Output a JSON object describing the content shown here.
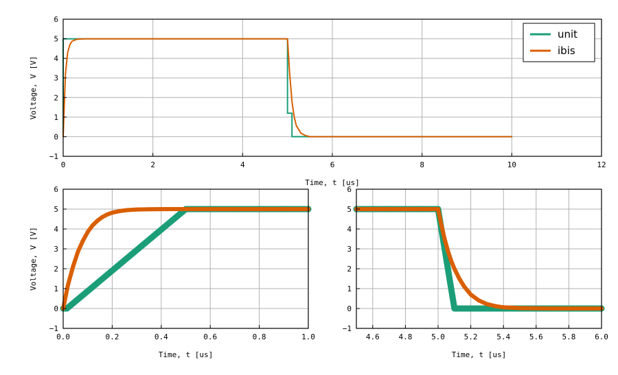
{
  "colors": {
    "unit": "#1b9e77",
    "ibis": "#d95f02",
    "grid": "#b0b0b0"
  },
  "chart_data": [
    {
      "type": "line",
      "xlabel": "Time, t [us]",
      "ylabel": "Voltage, V [V]",
      "xlim": [
        0,
        12
      ],
      "ylim": [
        -1,
        6
      ],
      "xticks": [
        0,
        2,
        4,
        6,
        8,
        10,
        12
      ],
      "xtick_labels": [
        "0",
        "2",
        "4",
        "6",
        "8",
        "10",
        "12"
      ],
      "yticks": [
        -1,
        0,
        1,
        2,
        3,
        4,
        5,
        6
      ],
      "ytick_labels": [
        "−1",
        "0",
        "1",
        "2",
        "3",
        "4",
        "5",
        "6"
      ],
      "grid": true,
      "legend": "top-right",
      "series": [
        {
          "name": "unit",
          "x": [
            0,
            0.0001,
            0.6,
            5.0,
            5.0001,
            5.1,
            5.1001,
            10
          ],
          "y": [
            0,
            5,
            5,
            5,
            1.2,
            1.2,
            0,
            0
          ]
        },
        {
          "name": "ibis",
          "x": [
            0,
            0.05,
            0.1,
            0.15,
            0.2,
            0.3,
            0.4,
            0.5,
            0.7,
            5.0,
            5.05,
            5.1,
            5.15,
            5.2,
            5.3,
            5.4,
            5.5,
            10
          ],
          "y": [
            0,
            3.2,
            4.3,
            4.7,
            4.88,
            4.97,
            4.99,
            5.0,
            5.0,
            5.0,
            3.2,
            1.8,
            1.0,
            0.55,
            0.18,
            0.06,
            0.0,
            0.0
          ]
        }
      ]
    },
    {
      "type": "scatter",
      "xlabel": "Time, t [us]",
      "ylabel": "Voltage, V [V]",
      "xlim": [
        0.0,
        1.0
      ],
      "ylim": [
        -1,
        6
      ],
      "xticks": [
        0.0,
        0.2,
        0.4,
        0.6,
        0.8,
        1.0
      ],
      "xtick_labels": [
        "0.0",
        "0.2",
        "0.4",
        "0.6",
        "0.8",
        "1.0"
      ],
      "yticks": [
        -1,
        0,
        1,
        2,
        3,
        4,
        5,
        6
      ],
      "ytick_labels": [
        "−1",
        "0",
        "1",
        "2",
        "3",
        "4",
        "5",
        "6"
      ],
      "grid": true,
      "series": [
        {
          "name": "unit",
          "x": [
            0.0,
            0.01,
            0.015,
            0.5,
            0.6,
            0.7,
            0.8,
            0.9,
            1.0
          ],
          "y": [
            0,
            0,
            0,
            5.0,
            5.0,
            5.0,
            5.0,
            5.0,
            5.0
          ]
        },
        {
          "name": "ibis",
          "x": [
            0.0,
            0.02,
            0.04,
            0.06,
            0.08,
            0.1,
            0.12,
            0.14,
            0.16,
            0.18,
            0.2,
            0.23,
            0.26,
            0.3,
            0.35,
            0.42,
            0.5,
            0.6,
            0.7,
            0.8,
            0.9,
            1.0
          ],
          "y": [
            0,
            1.2,
            2.1,
            2.85,
            3.4,
            3.85,
            4.18,
            4.42,
            4.6,
            4.73,
            4.82,
            4.9,
            4.95,
            4.98,
            4.99,
            5.0,
            5.0,
            5.0,
            5.0,
            5.0,
            5.0,
            5.0
          ]
        }
      ]
    },
    {
      "type": "scatter",
      "xlabel": "Time, t [us]",
      "xlim": [
        4.5,
        6.0
      ],
      "ylim": [
        -1,
        6
      ],
      "xticks": [
        4.6,
        4.8,
        5.0,
        5.2,
        5.4,
        5.6,
        5.8,
        6.0
      ],
      "xtick_labels": [
        "4.6",
        "4.8",
        "5.0",
        "5.2",
        "5.4",
        "5.6",
        "5.8",
        "6.0"
      ],
      "yticks": [
        -1,
        0,
        1,
        2,
        3,
        4,
        5,
        6
      ],
      "ytick_labels": [
        "−1",
        "0",
        "1",
        "2",
        "3",
        "4",
        "5",
        "6"
      ],
      "grid": true,
      "series": [
        {
          "name": "unit",
          "x": [
            4.5,
            4.7,
            4.9,
            5.0,
            5.1,
            5.3,
            5.5,
            5.7,
            5.9,
            6.0
          ],
          "y": [
            5,
            5,
            5,
            5,
            0,
            0,
            0,
            0,
            0,
            0
          ]
        },
        {
          "name": "ibis",
          "x": [
            4.5,
            4.7,
            4.9,
            5.0,
            5.02,
            5.04,
            5.06,
            5.08,
            5.1,
            5.13,
            5.16,
            5.2,
            5.25,
            5.3,
            5.35,
            5.4,
            5.5,
            5.7,
            6.0
          ],
          "y": [
            5,
            5,
            5,
            5,
            4.2,
            3.5,
            2.9,
            2.4,
            2.0,
            1.5,
            1.1,
            0.7,
            0.4,
            0.22,
            0.12,
            0.06,
            0.02,
            0,
            0
          ]
        }
      ]
    }
  ]
}
